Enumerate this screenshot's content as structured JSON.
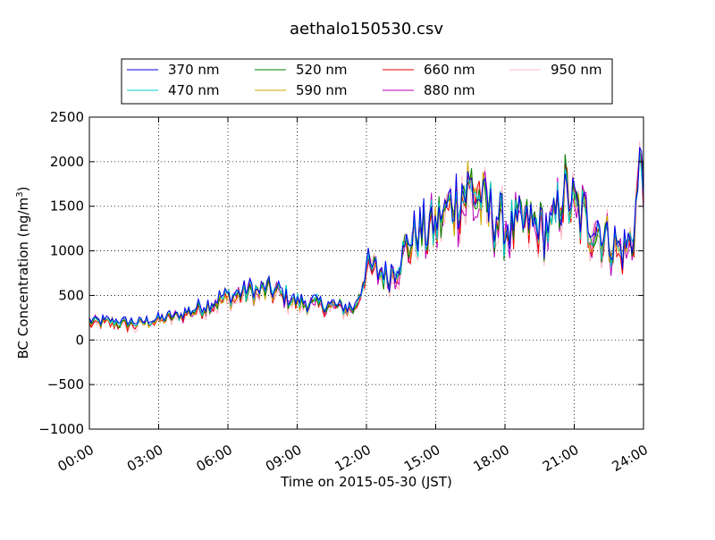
{
  "chart_data": {
    "type": "line",
    "title": "aethalo150530.csv",
    "xlabel": "Time on 2015-05-30 (JST)",
    "ylabel": "BC Concentration (ng/m",
    "ylabel_sup": "3",
    "ylabel_close": ")",
    "xlim": [
      "00:00",
      "24:00"
    ],
    "ylim": [
      -1000,
      2500
    ],
    "x_ticks": [
      "00:00",
      "03:00",
      "06:00",
      "09:00",
      "12:00",
      "15:00",
      "18:00",
      "21:00",
      "24:00"
    ],
    "y_ticks": [
      -1000,
      -500,
      0,
      500,
      1000,
      1500,
      2000,
      2500
    ],
    "y_tick_labels": [
      "−1000",
      "−500",
      "0",
      "500",
      "1000",
      "1500",
      "2000",
      "2500"
    ],
    "grid": true,
    "legend_position": "top",
    "series": [
      {
        "name": "370 nm",
        "color": "#0000ee",
        "offset": 20,
        "noise": 30
      },
      {
        "name": "470 nm",
        "color": "#00cccc",
        "offset": 10,
        "noise": 30
      },
      {
        "name": "520 nm",
        "color": "#008000",
        "offset": 0,
        "noise": 35
      },
      {
        "name": "590 nm",
        "color": "#ccaa00",
        "offset": -10,
        "noise": 35
      },
      {
        "name": "660 nm",
        "color": "#ee0000",
        "offset": -20,
        "noise": 40
      },
      {
        "name": "880 nm",
        "color": "#bb00bb",
        "offset": -10,
        "noise": 55
      },
      {
        "name": "950 nm",
        "color": "#ffb6c1",
        "offset": -30,
        "noise": 65
      }
    ],
    "hourly_mean_profile": {
      "hours": [
        0,
        1,
        2,
        3,
        4,
        5,
        6,
        7,
        8,
        9,
        10,
        11,
        11.5,
        12,
        13,
        14,
        15,
        16,
        16.5,
        17,
        18,
        19,
        20,
        20.5,
        21,
        22,
        23,
        23.5,
        24
      ],
      "values": [
        200,
        200,
        180,
        230,
        280,
        380,
        480,
        550,
        560,
        420,
        400,
        360,
        350,
        800,
        720,
        1150,
        1300,
        1600,
        1750,
        1550,
        1250,
        1300,
        1200,
        1700,
        1450,
        1250,
        1000,
        1100,
        2200
      ]
    }
  }
}
